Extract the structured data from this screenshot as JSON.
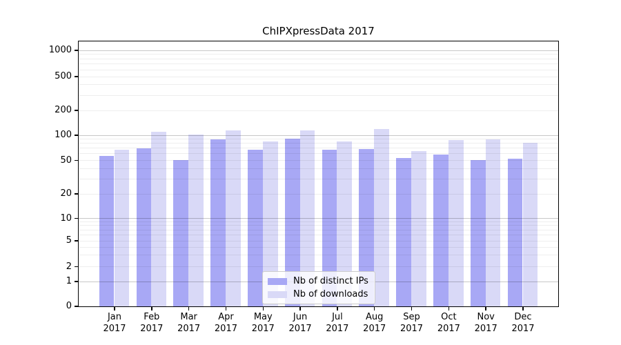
{
  "chart_data": {
    "type": "bar",
    "title": "ChIPXpressData 2017",
    "categories": [
      "Jan",
      "Feb",
      "Mar",
      "Apr",
      "May",
      "Jun",
      "Jul",
      "Aug",
      "Sep",
      "Oct",
      "Nov",
      "Dec"
    ],
    "year": "2017",
    "series": [
      {
        "name": "Nb of distinct IPs",
        "color": "#a8a8f5",
        "values": [
          55,
          69,
          50,
          88,
          66,
          90,
          66,
          67,
          52,
          58,
          50,
          51
        ]
      },
      {
        "name": "Nb of downloads",
        "color": "#d9d9f7",
        "values": [
          66,
          108,
          100,
          112,
          82,
          112,
          83,
          117,
          64,
          86,
          88,
          80
        ]
      }
    ],
    "y_axis": {
      "scale": "symlog",
      "ticks": [
        0,
        1,
        2,
        5,
        10,
        20,
        50,
        100,
        200,
        500,
        1000
      ],
      "minor_gridlines": [
        2,
        3,
        4,
        5,
        6,
        7,
        8,
        9,
        20,
        30,
        40,
        50,
        60,
        70,
        80,
        90,
        200,
        300,
        400,
        500,
        600,
        700,
        800,
        900
      ],
      "major_gridlines": [
        1,
        10,
        100,
        1000
      ]
    },
    "legend": {
      "position": "lower center"
    },
    "grid": "on"
  }
}
